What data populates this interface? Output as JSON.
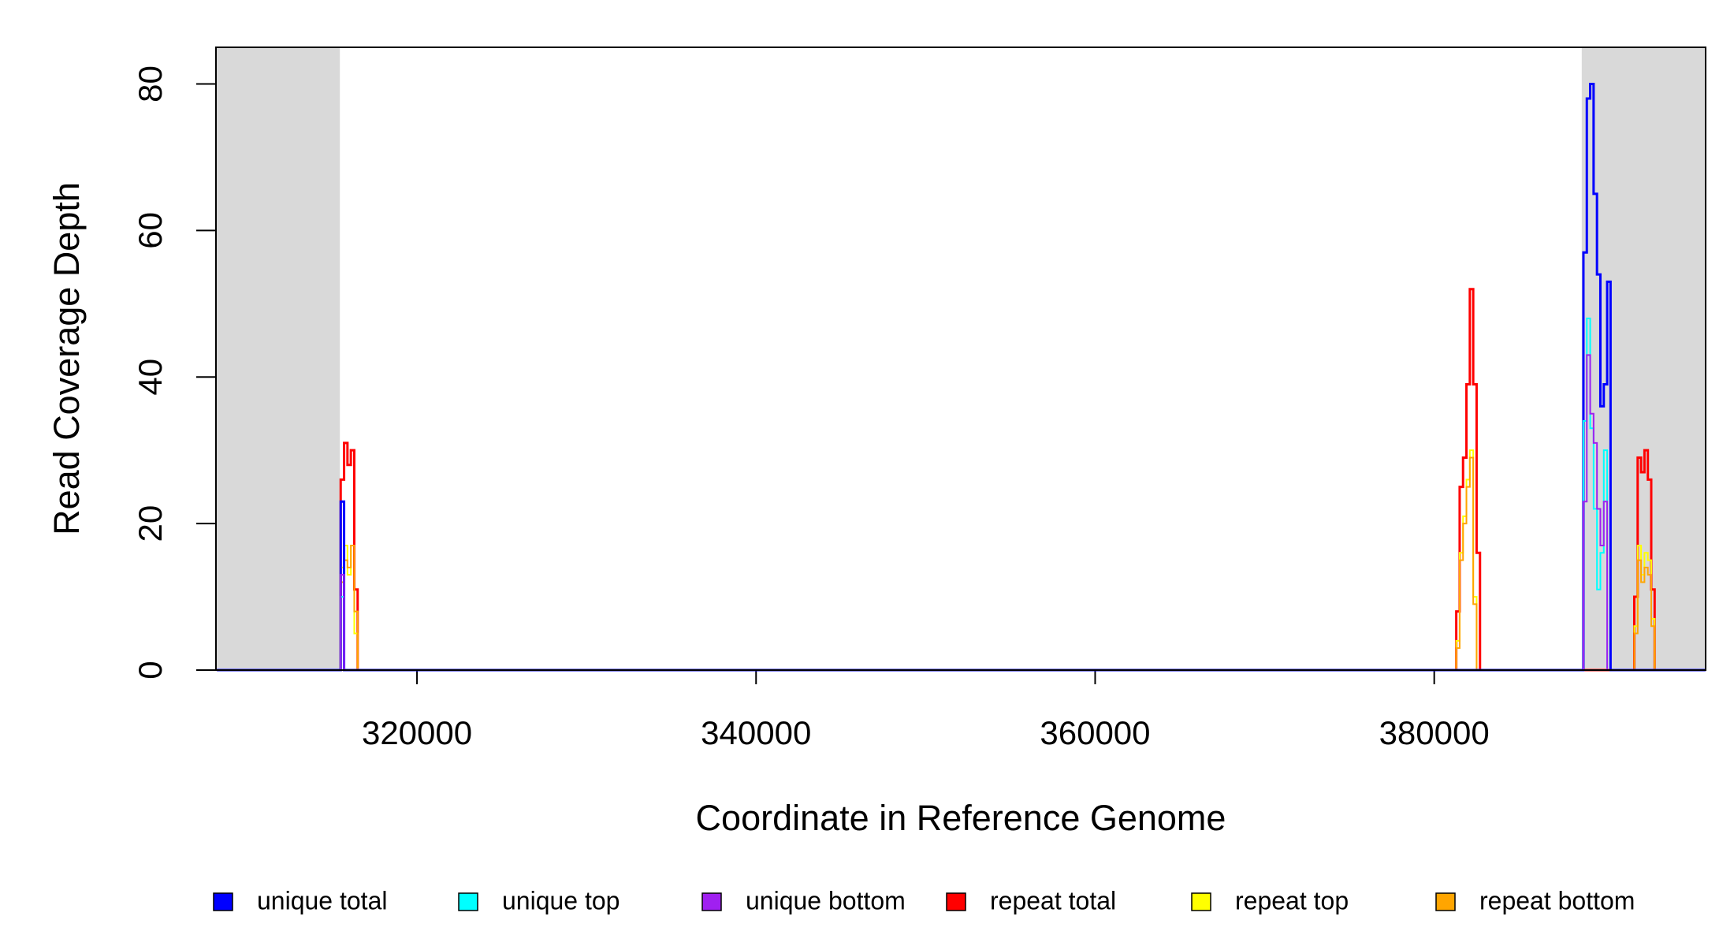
{
  "chart_data": {
    "type": "step",
    "x_label": "Coordinate in Reference Genome",
    "y_label": "Read Coverage Depth",
    "xlim": [
      308143,
      396008
    ],
    "ylim": [
      0,
      85
    ],
    "xticks": [
      320000,
      340000,
      360000,
      380000
    ],
    "yticks": [
      0,
      20,
      40,
      60,
      80
    ],
    "shaded": [
      [
        308143,
        315450
      ],
      [
        388700,
        396008
      ]
    ],
    "shade_color": "#d9d9d9",
    "x": [
      308200,
      315300,
      315500,
      315700,
      315900,
      316100,
      316300,
      316500,
      316700,
      381300,
      381500,
      381700,
      381900,
      382100,
      382300,
      382500,
      382700,
      388800,
      389000,
      389200,
      389400,
      389600,
      389800,
      390000,
      390200,
      390400,
      390600,
      391800,
      392000,
      392200,
      392400,
      392600,
      392800,
      393000,
      396000
    ],
    "series": [
      {
        "name": "unique total",
        "color": "#0000ff",
        "values": [
          0,
          0,
          23,
          0,
          0,
          0,
          0,
          0,
          0,
          0,
          0,
          0,
          0,
          0,
          0,
          0,
          0,
          57,
          78,
          80,
          65,
          54,
          36,
          39,
          53,
          0,
          0,
          0,
          0,
          0,
          0,
          0,
          0,
          0,
          0
        ]
      },
      {
        "name": "unique top",
        "color": "#00ffff",
        "values": [
          0,
          0,
          10,
          0,
          0,
          0,
          0,
          0,
          0,
          0,
          0,
          0,
          0,
          0,
          0,
          0,
          0,
          34,
          48,
          33,
          22,
          11,
          16,
          30,
          0,
          0,
          0,
          0,
          0,
          0,
          0,
          0,
          0,
          0,
          0
        ]
      },
      {
        "name": "unique bottom",
        "color": "#a020f0",
        "values": [
          0,
          0,
          13,
          0,
          0,
          0,
          0,
          0,
          0,
          0,
          0,
          0,
          0,
          0,
          0,
          0,
          0,
          23,
          43,
          35,
          31,
          22,
          17,
          23,
          0,
          0,
          0,
          0,
          0,
          0,
          0,
          0,
          0,
          0,
          0
        ]
      },
      {
        "name": "repeat total",
        "color": "#ff0000",
        "values": [
          0,
          0,
          26,
          31,
          28,
          30,
          11,
          0,
          0,
          8,
          25,
          29,
          39,
          52,
          39,
          16,
          0,
          0,
          0,
          0,
          0,
          0,
          0,
          0,
          0,
          0,
          0,
          10,
          29,
          27,
          30,
          26,
          11,
          0,
          0
        ]
      },
      {
        "name": "repeat top",
        "color": "#ffff00",
        "values": [
          0,
          0,
          14,
          17,
          13,
          17,
          5,
          0,
          0,
          4,
          16,
          21,
          26,
          30,
          10,
          0,
          0,
          0,
          0,
          0,
          0,
          0,
          0,
          0,
          0,
          0,
          0,
          6,
          17,
          13,
          16,
          15,
          7,
          0,
          0
        ]
      },
      {
        "name": "repeat bottom",
        "color": "#ffa500",
        "values": [
          0,
          0,
          12,
          15,
          14,
          17,
          8,
          0,
          0,
          3,
          15,
          20,
          25,
          29,
          9,
          0,
          0,
          0,
          0,
          0,
          0,
          0,
          0,
          0,
          0,
          0,
          0,
          5,
          15,
          12,
          14,
          13,
          6,
          0,
          0
        ]
      }
    ]
  }
}
